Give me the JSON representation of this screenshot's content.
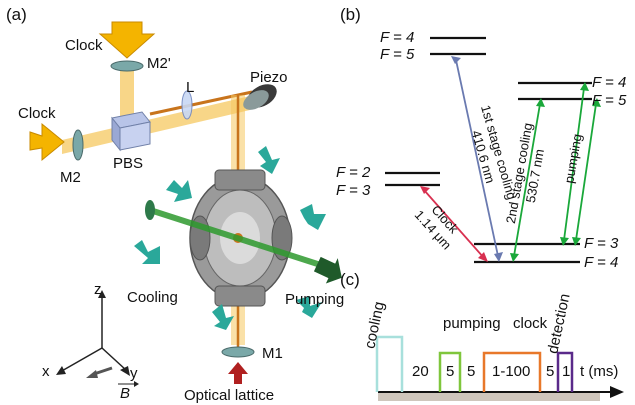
{
  "panels": {
    "a": "(a)",
    "b": "(b)",
    "c": "(c)"
  },
  "setup": {
    "clock_top": "Clock",
    "clock_left": "Clock",
    "m2prime": "M2'",
    "m2": "M2",
    "m1": "M1",
    "lens": "L",
    "pbs": "PBS",
    "piezo": "Piezo",
    "cooling": "Cooling",
    "pumping": "Pumping",
    "optical_lattice": "Optical lattice",
    "axis_x": "x",
    "axis_y": "y",
    "axis_z": "z",
    "bfield": "B"
  },
  "levels": {
    "left_upper_top": "F = 4",
    "left_upper_bottom": "F = 5",
    "mid_top": "F = 2",
    "mid_bottom": "F = 3",
    "right_upper_top": "F = 4",
    "right_upper_bottom": "F = 5",
    "ground_top": "F = 3",
    "ground_bottom": "F = 4"
  },
  "transitions": {
    "first_stage_line1": "1st stage cooling",
    "first_stage_line2": "410.6 nm",
    "clock_line1": "Clock",
    "clock_line2": "1.14 μm",
    "second_stage_line1": "2nd stage cooling",
    "second_stage_line2": "530.7 nm",
    "pumping": "pumping"
  },
  "sequence": {
    "labels": [
      "cooling",
      "pumping",
      "clock",
      "detection"
    ],
    "durations": [
      "20",
      "5",
      "5",
      "1-100",
      "5",
      "1"
    ],
    "axis_label": "t (ms)"
  },
  "colors": {
    "cooling_pulse": "#a8e0dc",
    "pumping_pulse": "#7fc63c",
    "clock_pulse": "#e8782a",
    "detection_pulse": "#5a2a8a",
    "first_stage_arrow": "#6a7ab0",
    "green_arrow": "#1aa83a",
    "clock_arrow": "#d83050",
    "beam": "#f5c860"
  }
}
